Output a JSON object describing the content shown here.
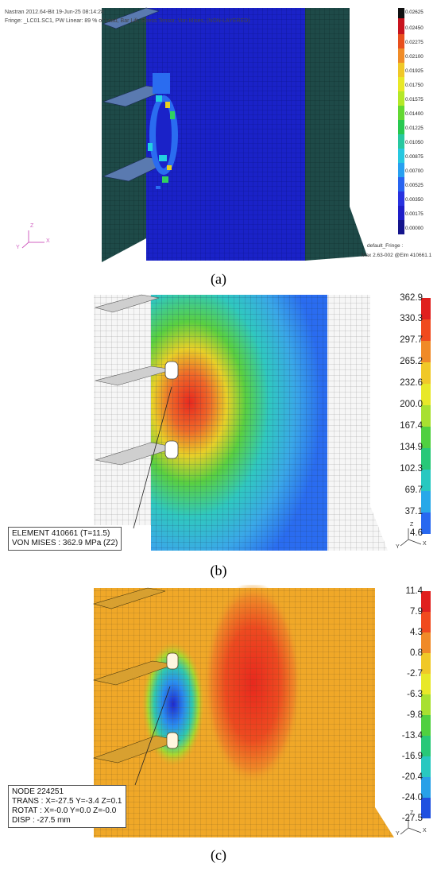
{
  "panel_a": {
    "caption": "(a)",
    "header_line1": "Nastran 2012.64-Bit 19-Jun-25 08:14:28",
    "header_line2": "Fringe: _LC01.SC1, PW Linear: 89 % of Load, Bar Lift, Stress Tensor, Von Mises, (NON-LAYERED)",
    "scale": [
      "0.02625",
      "0.02450",
      "0.02275",
      "0.02100",
      "0.01925",
      "0.01750",
      "0.01575",
      "0.01400",
      "0.01225",
      "0.01050",
      "0.00875",
      "0.00700",
      "0.00525",
      "0.00350",
      "0.00175",
      "0.00000"
    ],
    "footer_name": "default_Fringe :",
    "footer_max": "Max 2.63-002 @Elm 410661.1",
    "axes": {
      "z": "Z",
      "y": "Y",
      "x": "X"
    },
    "colors": {
      "background_mesh": "#1a22c8",
      "dark_plate": "#1e4a48"
    }
  },
  "panel_b": {
    "caption": "(b)",
    "scale": [
      "362.9",
      "330.3",
      "297.7",
      "265.2",
      "232.6",
      "200.0",
      "167.4",
      "134.9",
      "102.3",
      "69.7",
      "37.1",
      "4.6"
    ],
    "info_line1": "ELEMENT 410661 (T=11.5)",
    "info_line2": "VON MISES : 362.9 MPa (Z2)",
    "axes": {
      "z": "Z",
      "y": "Y",
      "x": "X"
    }
  },
  "panel_c": {
    "caption": "(c)",
    "scale": [
      "11.4",
      "7.9",
      "4.3",
      "0.8",
      "-2.7",
      "-6.3",
      "-9.8",
      "-13.4",
      "-16.9",
      "-20.4",
      "-24.0",
      "-27.5"
    ],
    "info_line1": "NODE 224251",
    "info_line2": "TRANS : X=-27.5  Y=-3.4  Z=0.1",
    "info_line3": "ROTAT : X=-0.0  Y=0.0  Z=-0.0",
    "info_line4": "DISP : -27.5 mm",
    "axes": {
      "z": "Z",
      "y": "Y",
      "x": "X"
    }
  }
}
